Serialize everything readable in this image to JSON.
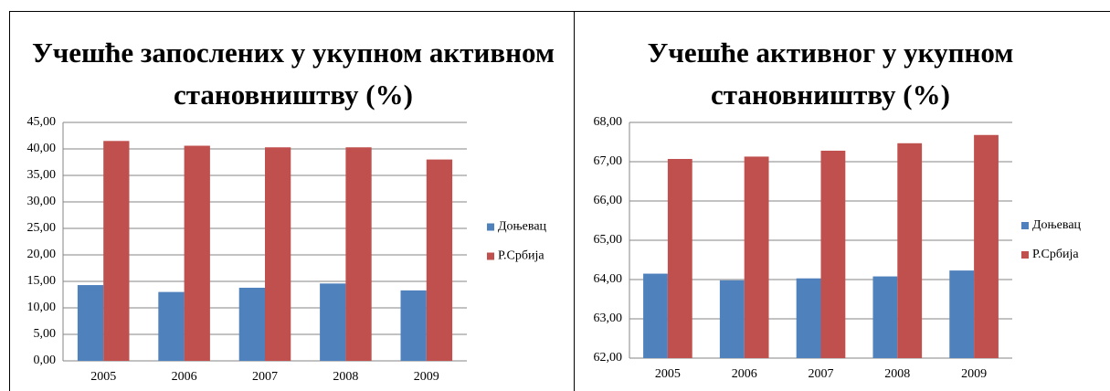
{
  "chart_data": [
    {
      "type": "bar",
      "title": "Учешће запослених у укупном активном становништву (%)",
      "categories": [
        "2005",
        "2006",
        "2007",
        "2008",
        "2009"
      ],
      "series": [
        {
          "name": "Доњевац",
          "color": "#4f81bd",
          "values": [
            14.3,
            13.0,
            13.8,
            14.6,
            13.3
          ]
        },
        {
          "name": "Р.Србија",
          "color": "#c0504d",
          "values": [
            41.5,
            40.6,
            40.3,
            40.3,
            38.0
          ]
        }
      ],
      "ylim": [
        0,
        45
      ],
      "yticks": [
        {
          "value": 0,
          "label": "0,00"
        },
        {
          "value": 5,
          "label": "5,00"
        },
        {
          "value": 10,
          "label": "10,00"
        },
        {
          "value": 15,
          "label": "15,00"
        },
        {
          "value": 20,
          "label": "20,00"
        },
        {
          "value": 25,
          "label": "25,00"
        },
        {
          "value": 30,
          "label": "30,00"
        },
        {
          "value": 35,
          "label": "35,00"
        },
        {
          "value": 40,
          "label": "40,00"
        },
        {
          "value": 45,
          "label": "45,00"
        }
      ],
      "grid": true,
      "legend": "right"
    },
    {
      "type": "bar",
      "title": "Учешће активног у укупном становништву (%)",
      "categories": [
        "2005",
        "2006",
        "2007",
        "2008",
        "2009"
      ],
      "series": [
        {
          "name": "Доњевац",
          "color": "#4f81bd",
          "values": [
            64.15,
            63.98,
            64.03,
            64.08,
            64.23
          ]
        },
        {
          "name": "Р.Србија",
          "color": "#c0504d",
          "values": [
            67.07,
            67.13,
            67.28,
            67.47,
            67.68
          ]
        }
      ],
      "ylim": [
        62,
        68
      ],
      "yticks": [
        {
          "value": 62,
          "label": "62,00"
        },
        {
          "value": 63,
          "label": "63,00"
        },
        {
          "value": 64,
          "label": "64,00"
        },
        {
          "value": 65,
          "label": "65,00"
        },
        {
          "value": 66,
          "label": "66,00"
        },
        {
          "value": 67,
          "label": "67,00"
        },
        {
          "value": 68,
          "label": "68,00"
        }
      ],
      "grid": true,
      "legend": "right"
    }
  ]
}
